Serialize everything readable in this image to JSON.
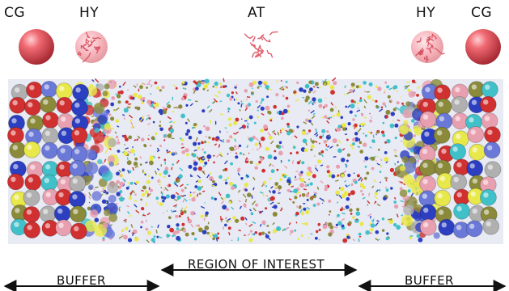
{
  "labels": {
    "cg_left": "CG",
    "hy_left": "HY",
    "at": "AT",
    "hy_right": "HY",
    "cg_right": "CG"
  },
  "arrows": {
    "region_of_interest": "REGION OF INTEREST",
    "buffer_left": "BUFFER",
    "buffer_right": "BUFFER"
  },
  "colors": {
    "cg_sphere": "#e0505a",
    "hy_sphere": "#f0a0a8",
    "atoms": [
      "#2b3fc0",
      "#e8e84a",
      "#e8a0b0",
      "#d03030",
      "#40c0c8",
      "#8a8a3a",
      "#b0b0b0",
      "#6a78d8"
    ]
  }
}
